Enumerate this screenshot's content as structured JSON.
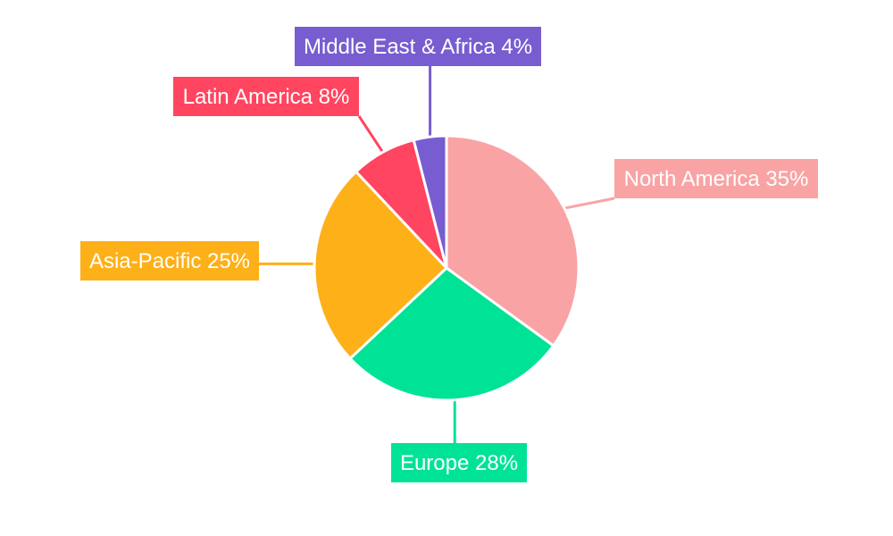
{
  "chart_data": {
    "type": "pie",
    "start_angle": "12 o'clock, clockwise",
    "slices": [
      {
        "label": "North America",
        "value": 35,
        "display": "North America 35%",
        "color": "#f9a3a4"
      },
      {
        "label": "Europe",
        "value": 28,
        "display": "Europe 28%",
        "color": "#00e396"
      },
      {
        "label": "Asia-Pacific",
        "value": 25,
        "display": "Asia-Pacific 25%",
        "color": "#feb019"
      },
      {
        "label": "Latin America",
        "value": 8,
        "display": "Latin America 8%",
        "color": "#ff4560"
      },
      {
        "label": "Middle East & Africa",
        "value": 4,
        "display": "Middle East & Africa 4%",
        "color": "#775dd0"
      }
    ]
  }
}
